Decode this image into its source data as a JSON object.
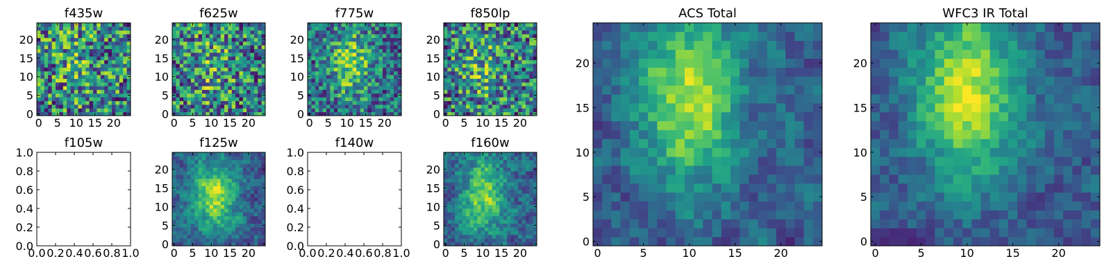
{
  "chart_data": [
    {
      "type": "heatmap",
      "title": "f435w",
      "xlim": [
        -0.5,
        24.5
      ],
      "ylim": [
        -0.5,
        24.5
      ],
      "xticks": [
        0,
        5,
        10,
        15,
        20
      ],
      "yticks": [
        0,
        5,
        10,
        15,
        20
      ],
      "grid_size": 25,
      "seed": 11,
      "structure": 0.12,
      "blur": 0,
      "blob": {
        "cx": 10,
        "cy": 14
      }
    },
    {
      "type": "heatmap",
      "title": "f625w",
      "xlim": [
        -0.5,
        24.5
      ],
      "ylim": [
        -0.5,
        24.5
      ],
      "xticks": [
        0,
        5,
        10,
        15,
        20
      ],
      "yticks": [
        0,
        5,
        10,
        15,
        20
      ],
      "grid_size": 25,
      "seed": 23,
      "structure": 0.15,
      "blur": 0,
      "blob": {
        "cx": 10,
        "cy": 13
      }
    },
    {
      "type": "heatmap",
      "title": "f775w",
      "xlim": [
        -0.5,
        24.5
      ],
      "ylim": [
        -0.5,
        24.5
      ],
      "xticks": [
        0,
        5,
        10,
        15,
        20
      ],
      "yticks": [
        0,
        5,
        10,
        15,
        20
      ],
      "grid_size": 25,
      "seed": 37,
      "structure": 0.35,
      "blur": 0,
      "blob": {
        "cx": 11,
        "cy": 14
      }
    },
    {
      "type": "heatmap",
      "title": "f850lp",
      "xlim": [
        -0.5,
        24.5
      ],
      "ylim": [
        -0.5,
        24.5
      ],
      "xticks": [
        0,
        5,
        10,
        15,
        20
      ],
      "yticks": [
        0,
        5,
        10,
        15,
        20
      ],
      "grid_size": 25,
      "seed": 41,
      "structure": 0.18,
      "blur": 0,
      "blob": {
        "cx": 10,
        "cy": 13
      }
    },
    {
      "type": "empty",
      "title": "f105w",
      "xlim": [
        0.0,
        1.0
      ],
      "ylim": [
        0.0,
        1.0
      ],
      "xticks": [
        "0.0",
        "0.2",
        "0.4",
        "0.6",
        "0.8",
        "1.0"
      ],
      "yticks": [
        "0.0",
        "0.2",
        "0.4",
        "0.6",
        "0.8",
        "1.0"
      ]
    },
    {
      "type": "heatmap",
      "title": "f125w",
      "xlim": [
        -0.5,
        24.5
      ],
      "ylim": [
        -0.5,
        24.5
      ],
      "xticks": [
        0,
        5,
        10,
        15,
        20
      ],
      "yticks": [
        0,
        5,
        10,
        15,
        20
      ],
      "grid_size": 25,
      "seed": 53,
      "structure": 0.45,
      "blur": 1,
      "blob": {
        "cx": 11,
        "cy": 13
      }
    },
    {
      "type": "empty",
      "title": "f140w",
      "xlim": [
        0.0,
        1.0
      ],
      "ylim": [
        0.0,
        1.0
      ],
      "xticks": [
        "0.0",
        "0.2",
        "0.4",
        "0.6",
        "0.8",
        "1.0"
      ],
      "yticks": [
        "0.0",
        "0.2",
        "0.4",
        "0.6",
        "0.8",
        "1.0"
      ]
    },
    {
      "type": "heatmap",
      "title": "f160w",
      "xlim": [
        -0.5,
        24.5
      ],
      "ylim": [
        -0.5,
        24.5
      ],
      "xticks": [
        0,
        5,
        10,
        15,
        20
      ],
      "yticks": [
        0,
        5,
        10,
        15,
        20
      ],
      "grid_size": 25,
      "seed": 67,
      "structure": 0.4,
      "blur": 1,
      "blob": {
        "cx": 10,
        "cy": 13
      }
    },
    {
      "type": "heatmap",
      "title": "ACS Total",
      "xlim": [
        -0.5,
        24.5
      ],
      "ylim": [
        -0.5,
        24.5
      ],
      "xticks": [
        0,
        5,
        10,
        15,
        20
      ],
      "yticks": [
        0,
        5,
        10,
        15,
        20
      ],
      "grid_size": 25,
      "seed": 79,
      "structure": 0.5,
      "blur": 1,
      "blob": {
        "cx": 10,
        "cy": 16
      }
    },
    {
      "type": "heatmap",
      "title": "WFC3 IR Total",
      "xlim": [
        -0.5,
        24.5
      ],
      "ylim": [
        -0.5,
        24.5
      ],
      "xticks": [
        0,
        5,
        10,
        15,
        20
      ],
      "yticks": [
        0,
        5,
        10,
        15,
        20
      ],
      "grid_size": 25,
      "seed": 97,
      "structure": 0.55,
      "blur": 1,
      "blob": {
        "cx": 10,
        "cy": 17
      }
    }
  ],
  "colormap": "viridis",
  "colors": {
    "axis": "#000000",
    "background": "#ffffff"
  }
}
